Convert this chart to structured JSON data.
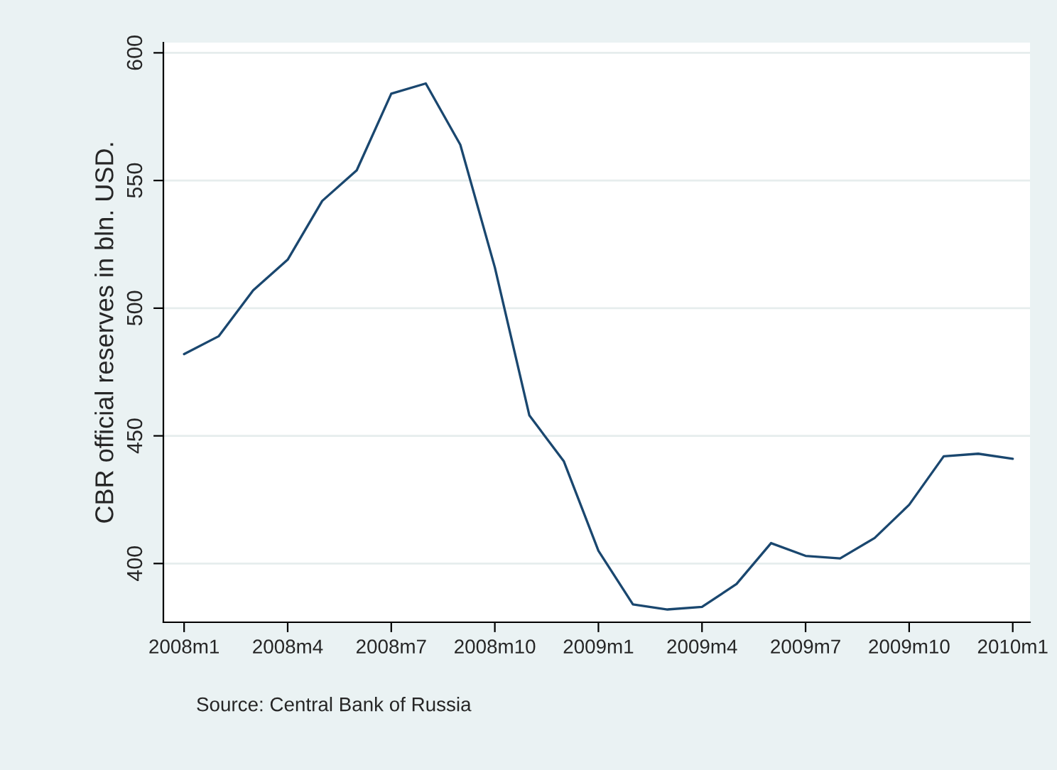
{
  "chart_data": {
    "type": "line",
    "ylabel": "CBR official reserves in bln. USD.",
    "categories": [
      "2008m1",
      null,
      null,
      "2008m4",
      null,
      null,
      "2008m7",
      null,
      null,
      "2008m10",
      null,
      null,
      "2009m1",
      null,
      null,
      "2009m4",
      null,
      null,
      "2009m7",
      null,
      null,
      "2009m10",
      null,
      null,
      "2010m1"
    ],
    "series": [
      {
        "color": "#1a476f",
        "values": [
          482,
          489,
          507,
          519,
          542,
          554,
          584,
          588,
          564,
          516,
          458,
          440,
          405,
          384,
          382,
          383,
          392,
          408,
          403,
          402,
          410,
          423,
          442,
          443,
          441
        ]
      }
    ],
    "ylim": [
      377,
      604
    ],
    "yticks": [
      400,
      450,
      500,
      550,
      600
    ],
    "grid": "y",
    "marker": "none",
    "line_style": "solid",
    "annotations": [
      "Source: Central Bank of Russia"
    ]
  }
}
